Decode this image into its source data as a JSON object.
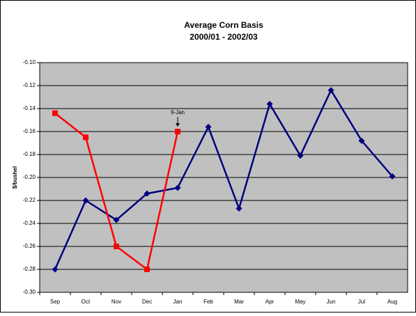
{
  "chart_data": {
    "type": "line",
    "title": "Average Corn Basis",
    "subtitle": "2000/01 - 2002/03",
    "y_label": "$/bushel",
    "annotation": "9-Jan",
    "categories": [
      "Sep",
      "Oct",
      "Nov",
      "Dec",
      "Jan",
      "Feb",
      "Mar",
      "Apr",
      "May",
      "Jun",
      "Jul",
      "Aug"
    ],
    "series": [
      {
        "color": "#000080",
        "marker": "diamond",
        "values": [
          -0.28,
          -0.22,
          -0.237,
          -0.214,
          -0.209,
          -0.156,
          -0.227,
          -0.136,
          -0.181,
          -0.124,
          -0.168,
          -0.199
        ]
      },
      {
        "color": "#ff0000",
        "marker": "square",
        "values": [
          -0.144,
          -0.165,
          -0.26,
          -0.28,
          -0.16,
          null,
          null,
          null,
          null,
          null,
          null,
          null
        ]
      }
    ],
    "ylim": [
      -0.3,
      -0.1
    ],
    "yticks": [
      {
        "value": -0.3,
        "label": "-0.30"
      },
      -0.28,
      -0.26,
      -0.24,
      -0.22,
      {
        "value": -0.2,
        "label": "-0.20"
      },
      -0.18,
      -0.16,
      -0.14,
      -0.12,
      {
        "value": -0.1,
        "label": "-0.10"
      }
    ],
    "grid": true
  }
}
